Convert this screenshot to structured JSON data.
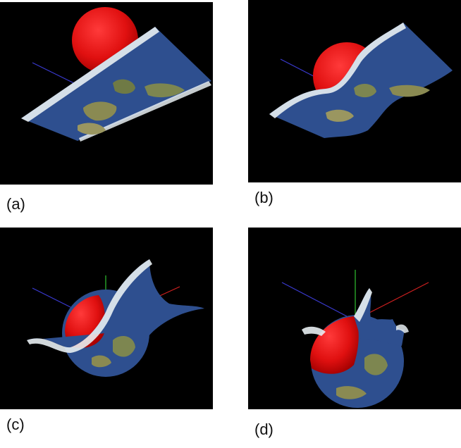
{
  "figure": {
    "panels": [
      {
        "id": "a",
        "label": "(a)"
      },
      {
        "id": "b",
        "label": "(b)"
      },
      {
        "id": "c",
        "label": "(c)"
      },
      {
        "id": "d",
        "label": "(d)"
      }
    ]
  },
  "colors": {
    "background": "#000000",
    "sphere": "#e01010",
    "ocean": "#2e4f8f",
    "land": "#8a8a52",
    "ice": "#e8eef2",
    "axis_x": "#d02020",
    "axis_y": "#30c030",
    "axis_z": "#3030c0"
  }
}
